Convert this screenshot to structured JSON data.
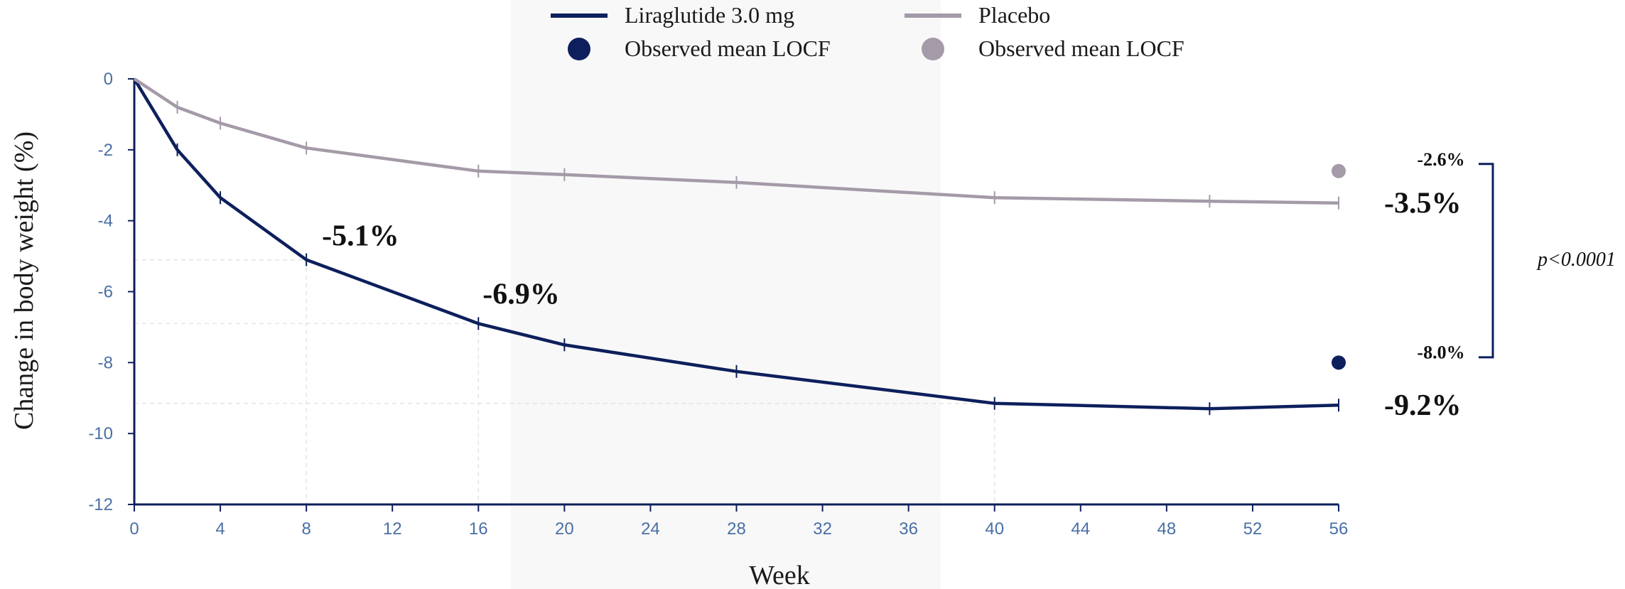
{
  "chart_data": {
    "type": "line",
    "xlabel": "Week",
    "ylabel": "Change in body weight (%)",
    "xlim": [
      0,
      56
    ],
    "ylim": [
      -12,
      0
    ],
    "xticks": [
      0,
      4,
      8,
      12,
      16,
      20,
      24,
      28,
      32,
      36,
      40,
      44,
      48,
      52,
      56
    ],
    "yticks": [
      0,
      -2,
      -4,
      -6,
      -8,
      -10,
      -12
    ],
    "series": [
      {
        "name": "Liraglutide 3.0 mg",
        "color": "#0d1f5c",
        "x": [
          0,
          2,
          4,
          8,
          16,
          20,
          28,
          40,
          50,
          56
        ],
        "y": [
          0,
          -2.0,
          -3.35,
          -5.1,
          -6.9,
          -7.5,
          -8.25,
          -9.15,
          -9.3,
          -9.2
        ]
      },
      {
        "name": "Placebo",
        "color": "#a59aa8",
        "x": [
          0,
          2,
          4,
          8,
          16,
          20,
          28,
          40,
          50,
          56
        ],
        "y": [
          0,
          -0.8,
          -1.25,
          -1.95,
          -2.6,
          -2.7,
          -2.92,
          -3.35,
          -3.45,
          -3.5
        ]
      }
    ],
    "observed_points": [
      {
        "name": "Observed mean LOCF",
        "series": "Liraglutide 3.0 mg",
        "x": 56,
        "y": -8.0,
        "color": "#0d1f5c",
        "label": "-8.0%"
      },
      {
        "name": "Observed mean LOCF",
        "series": "Placebo",
        "x": 56,
        "y": -2.6,
        "color": "#a59aa8",
        "label": "-2.6%"
      }
    ],
    "annotations": [
      {
        "text": "-5.1%",
        "x": 8,
        "y": -5.1
      },
      {
        "text": "-6.9%",
        "x": 16,
        "y": -6.9
      },
      {
        "text": "-3.5%",
        "x": 56,
        "y": -3.5
      },
      {
        "text": "-9.2%",
        "x": 56,
        "y": -9.2
      }
    ],
    "significance": "p<0.0001",
    "legend": [
      {
        "label": "Liraglutide 3.0 mg",
        "kind": "line",
        "color": "#0d1f5c"
      },
      {
        "label": "Placebo",
        "kind": "line",
        "color": "#a59aa8"
      },
      {
        "label": "Observed mean LOCF",
        "kind": "dot",
        "color": "#0d1f5c"
      },
      {
        "label": "Observed mean LOCF",
        "kind": "dot",
        "color": "#a59aa8"
      }
    ],
    "legend_position": "top",
    "shaded_x_range": [
      17.5,
      37.5
    ],
    "grid": false
  }
}
